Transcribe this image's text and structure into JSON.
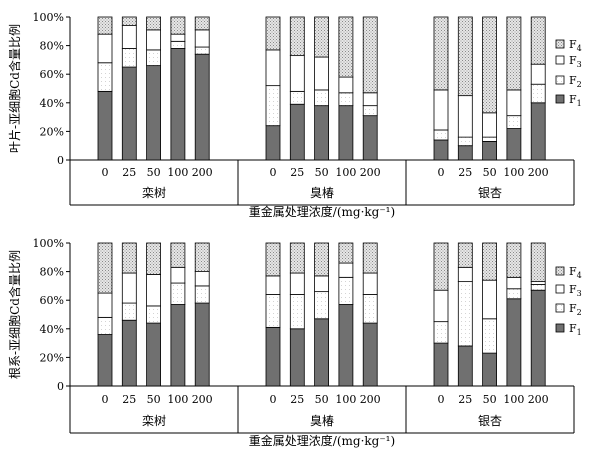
{
  "colors": {
    "F1": "#707070",
    "F2": "#ffffff",
    "F3": "#ffffff",
    "F4": "#d2d2d2",
    "axis": "#000000"
  },
  "legend": {
    "placement": "right",
    "entries": [
      "F4",
      "F3",
      "F2",
      "F1"
    ]
  },
  "chart_data": [
    {
      "type": "bar",
      "stacked": true,
      "ylabel": "叶片-亚细胞Cd含量比例",
      "xlabel": "重金属处理浓度/(mg·kg⁻¹)",
      "ylim": [
        0,
        100
      ],
      "yticks": [
        "0",
        "20%",
        "40%",
        "60%",
        "80%",
        "100%"
      ],
      "legend": [
        "F4",
        "F3",
        "F2",
        "F1"
      ],
      "groups": [
        {
          "name": "栾树",
          "categories": [
            "0",
            "25",
            "50",
            "100",
            "200"
          ],
          "series": [
            {
              "name": "F1",
              "values": [
                48,
                65,
                66,
                78,
                74
              ]
            },
            {
              "name": "F2",
              "values": [
                20,
                13,
                11,
                5,
                5
              ]
            },
            {
              "name": "F3",
              "values": [
                20,
                16,
                14,
                5,
                12
              ]
            },
            {
              "name": "F4",
              "values": [
                12,
                6,
                9,
                12,
                9
              ]
            }
          ]
        },
        {
          "name": "臭椿",
          "categories": [
            "0",
            "25",
            "50",
            "100",
            "200"
          ],
          "series": [
            {
              "name": "F1",
              "values": [
                24,
                39,
                38,
                38,
                31
              ]
            },
            {
              "name": "F2",
              "values": [
                28,
                9,
                11,
                9,
                7
              ]
            },
            {
              "name": "F3",
              "values": [
                25,
                25,
                23,
                11,
                9
              ]
            },
            {
              "name": "F4",
              "values": [
                23,
                27,
                28,
                42,
                53
              ]
            }
          ]
        },
        {
          "name": "银杏",
          "categories": [
            "0",
            "25",
            "50",
            "100",
            "200"
          ],
          "series": [
            {
              "name": "F1",
              "values": [
                14,
                10,
                13,
                22,
                40
              ]
            },
            {
              "name": "F2",
              "values": [
                7,
                6,
                3,
                9,
                13
              ]
            },
            {
              "name": "F3",
              "values": [
                28,
                29,
                17,
                18,
                14
              ]
            },
            {
              "name": "F4",
              "values": [
                51,
                55,
                67,
                51,
                33
              ]
            }
          ]
        }
      ]
    },
    {
      "type": "bar",
      "stacked": true,
      "ylabel": "根系-亚细胞Cd含量比例",
      "xlabel": "重金属处理浓度/(mg·kg⁻¹)",
      "ylim": [
        0,
        100
      ],
      "yticks": [
        "0",
        "20%",
        "40%",
        "60%",
        "80%",
        "100%"
      ],
      "legend": [
        "F4",
        "F3",
        "F2",
        "F1"
      ],
      "groups": [
        {
          "name": "栾树",
          "categories": [
            "0",
            "25",
            "50",
            "100",
            "200"
          ],
          "series": [
            {
              "name": "F1",
              "values": [
                36,
                46,
                44,
                57,
                58
              ]
            },
            {
              "name": "F2",
              "values": [
                12,
                12,
                12,
                15,
                12
              ]
            },
            {
              "name": "F3",
              "values": [
                17,
                21,
                22,
                11,
                10
              ]
            },
            {
              "name": "F4",
              "values": [
                35,
                21,
                22,
                17,
                20
              ]
            }
          ]
        },
        {
          "name": "臭椿",
          "categories": [
            "0",
            "25",
            "50",
            "100",
            "200"
          ],
          "series": [
            {
              "name": "F1",
              "values": [
                41,
                40,
                47,
                57,
                44
              ]
            },
            {
              "name": "F2",
              "values": [
                23,
                24,
                19,
                19,
                20
              ]
            },
            {
              "name": "F3",
              "values": [
                13,
                15,
                11,
                10,
                15
              ]
            },
            {
              "name": "F4",
              "values": [
                23,
                21,
                23,
                14,
                21
              ]
            }
          ]
        },
        {
          "name": "银杏",
          "categories": [
            "0",
            "25",
            "50",
            "100",
            "200"
          ],
          "series": [
            {
              "name": "F1",
              "values": [
                30,
                28,
                23,
                61,
                67
              ]
            },
            {
              "name": "F2",
              "values": [
                15,
                45,
                24,
                7,
                4
              ]
            },
            {
              "name": "F3",
              "values": [
                22,
                10,
                27,
                8,
                2
              ]
            },
            {
              "name": "F4",
              "values": [
                33,
                17,
                26,
                24,
                27
              ]
            }
          ]
        }
      ]
    }
  ]
}
